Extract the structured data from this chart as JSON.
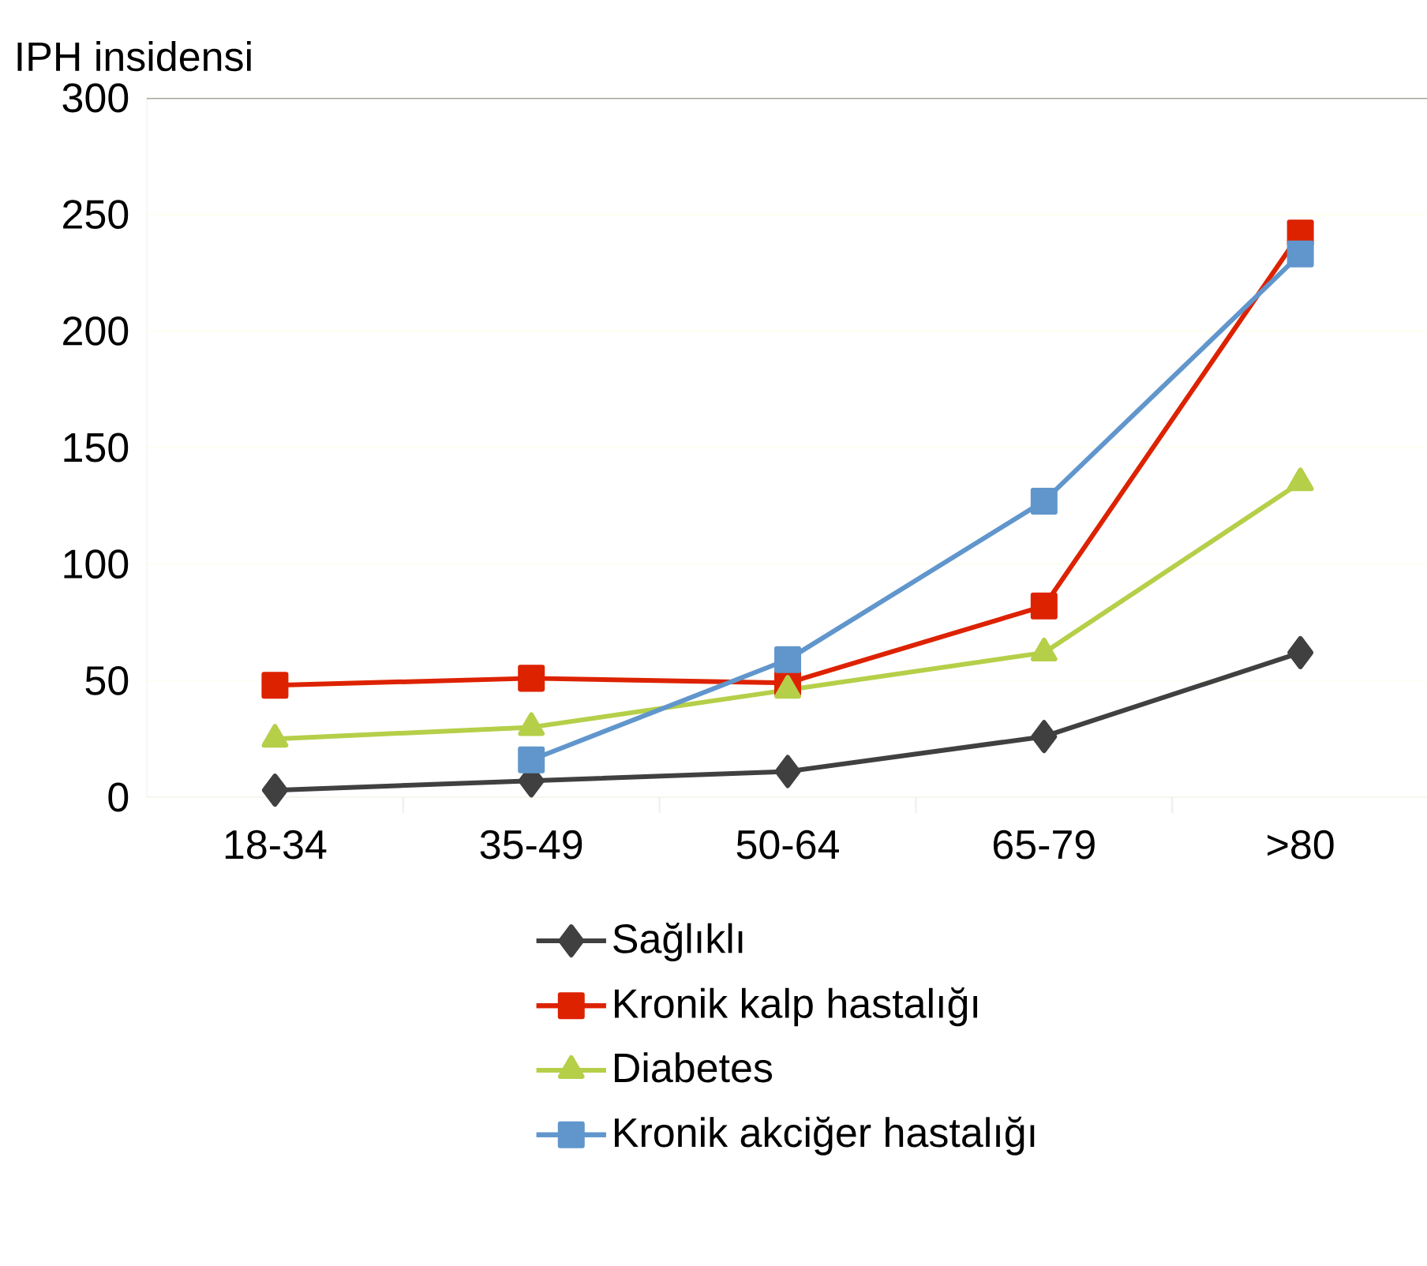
{
  "chart_data": {
    "type": "line",
    "ylabel": "IPH insidensi",
    "categories": [
      "18-34",
      "35-49",
      "50-64",
      "65-79",
      ">80"
    ],
    "ylim": [
      0,
      300
    ],
    "yticks": [
      0,
      50,
      100,
      150,
      200,
      250,
      300
    ],
    "grid": "y",
    "legend": "bottom",
    "series": [
      {
        "name": "Sağlıklı",
        "color": "#404040",
        "marker": "diamond",
        "values": [
          3,
          7,
          11,
          26,
          62
        ]
      },
      {
        "name": "Kronik kalp hastalığı",
        "color": "#dd2200",
        "marker": "square",
        "values": [
          48,
          51,
          49,
          82,
          242
        ]
      },
      {
        "name": "Diabetes",
        "color": "#b5cf49",
        "marker": "triangle",
        "values": [
          25,
          30,
          46,
          62,
          135
        ]
      },
      {
        "name": "Kronik akciğer hastalığı",
        "color": "#6096cc",
        "marker": "square",
        "values": [
          null,
          16,
          59,
          127,
          233
        ]
      }
    ]
  }
}
